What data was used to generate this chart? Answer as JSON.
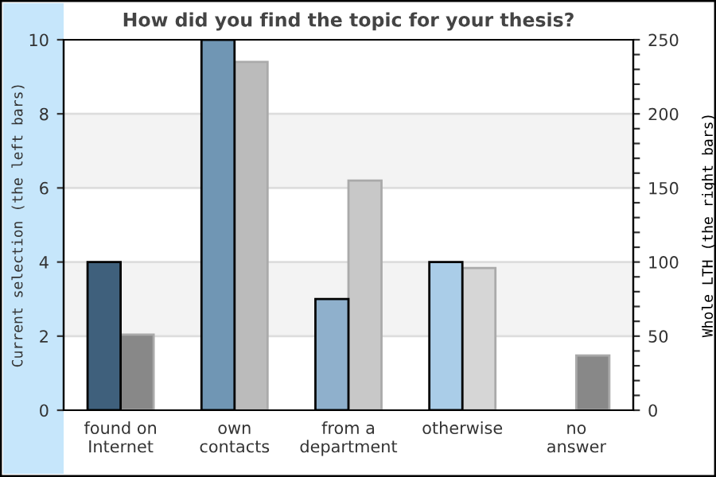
{
  "chart_data": {
    "type": "bar",
    "title": "How did you find the topic for your thesis?",
    "categories": [
      "found on\nInternet",
      "own\ncontacts",
      "from a\ndepartment",
      "otherwise",
      "no\nanswer"
    ],
    "series": [
      {
        "colors": [
          "#3f607c",
          "#7096b4",
          "#8fb0cc",
          "#aacde8",
          null
        ],
        "values": [
          4,
          10,
          3,
          4,
          null
        ]
      },
      {
        "axis": "y2",
        "colors": [
          "#888888",
          "#bbbbbb",
          "#c8c8c8",
          "#d6d6d6",
          "#888888"
        ],
        "values": [
          51,
          235,
          155,
          96,
          37
        ]
      }
    ],
    "ylabel": "Current selection (the left bars)",
    "y2label": "Whole LTH (the right bars)",
    "ylim": [
      0,
      10
    ],
    "yticks": [
      0,
      2,
      4,
      6,
      8,
      10
    ],
    "y2lim": [
      0,
      250
    ],
    "y2ticks": [
      0,
      {
        "value": 10,
        "label": null
      },
      {
        "value": 20,
        "label": null
      },
      {
        "value": 30,
        "label": null
      },
      {
        "value": 40,
        "label": null
      },
      50,
      {
        "value": 60,
        "label": null
      },
      {
        "value": 70,
        "label": null
      },
      {
        "value": 80,
        "label": null
      },
      {
        "value": 90,
        "label": null
      },
      100,
      {
        "value": 110,
        "label": null
      },
      {
        "value": 120,
        "label": null
      },
      {
        "value": 130,
        "label": null
      },
      {
        "value": 140,
        "label": null
      },
      150,
      {
        "value": 160,
        "label": null
      },
      {
        "value": 170,
        "label": null
      },
      {
        "value": 180,
        "label": null
      },
      {
        "value": 190,
        "label": null
      },
      200,
      {
        "value": 210,
        "label": null
      },
      {
        "value": 220,
        "label": null
      },
      {
        "value": 230,
        "label": null
      },
      {
        "value": 240,
        "label": null
      },
      250
    ],
    "bands": [
      {
        "axis": "y",
        "from": 2,
        "to": 4,
        "color": "#f3f3f3"
      },
      {
        "axis": "y",
        "from": 6,
        "to": 8,
        "color": "#f3f3f3"
      }
    ],
    "grid": "y",
    "legend": false
  }
}
